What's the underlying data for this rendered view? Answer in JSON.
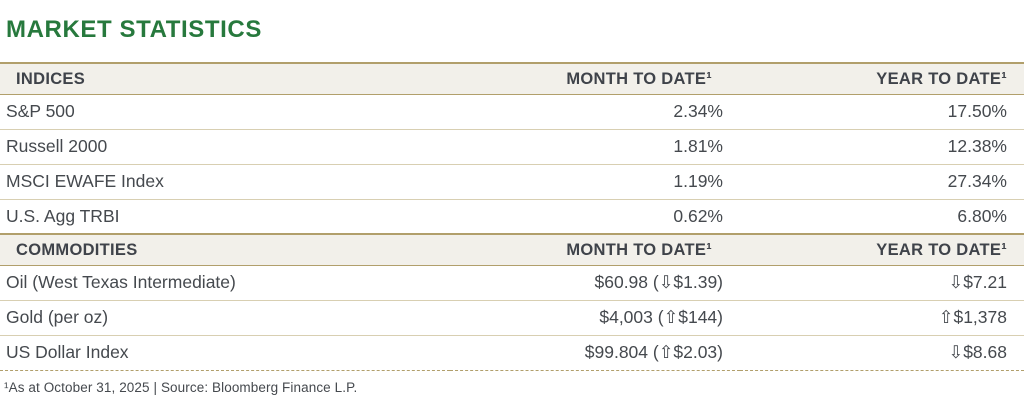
{
  "page": {
    "title": "MARKET STATISTICS"
  },
  "colors": {
    "title_green": "#27793d",
    "gold_border": "#b19f6b",
    "row_separator": "#d8cfb2",
    "header_background": "#f2f0ea",
    "text": "#45494e"
  },
  "table": {
    "sections": [
      {
        "header": {
          "label": "INDICES",
          "mtd": "MONTH TO DATE¹",
          "ytd": "YEAR TO DATE¹"
        },
        "rows": [
          {
            "label": "S&P 500",
            "mtd": "2.34%",
            "ytd": "17.50%"
          },
          {
            "label": "Russell 2000",
            "mtd": "1.81%",
            "ytd": "12.38%"
          },
          {
            "label": "MSCI EWAFE Index",
            "mtd": "1.19%",
            "ytd": "27.34%"
          },
          {
            "label": "U.S. Agg TRBI",
            "mtd": "0.62%",
            "ytd": "6.80%"
          }
        ]
      },
      {
        "header": {
          "label": "COMMODITIES",
          "mtd": "MONTH TO DATE¹",
          "ytd": "YEAR TO DATE¹"
        },
        "rows": [
          {
            "label": "Oil (West Texas Intermediate)",
            "mtd": "$60.98 (⇩$1.39)",
            "ytd": "⇩$7.21"
          },
          {
            "label": "Gold (per oz)",
            "mtd": "$4,003 (⇧$144)",
            "ytd": "⇧$1,378"
          },
          {
            "label": "US Dollar Index",
            "mtd": "$99.804 (⇧$2.03)",
            "ytd": "⇩$8.68"
          }
        ]
      }
    ]
  },
  "footnote": "¹As at October 31, 2025 | Source: Bloomberg Finance L.P."
}
